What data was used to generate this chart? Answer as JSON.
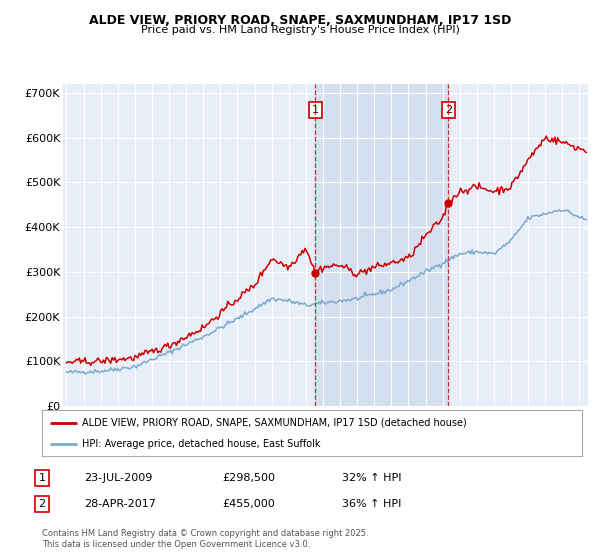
{
  "title_line1": "ALDE VIEW, PRIORY ROAD, SNAPE, SAXMUNDHAM, IP17 1SD",
  "title_line2": "Price paid vs. HM Land Registry's House Price Index (HPI)",
  "plot_bg": "#e8eef8",
  "shade_color": "#ccd9ee",
  "red_color": "#cc0000",
  "blue_color": "#7aaacc",
  "ylim": [
    0,
    720000
  ],
  "yticks": [
    0,
    100000,
    200000,
    300000,
    400000,
    500000,
    600000,
    700000
  ],
  "ytick_labels": [
    "£0",
    "£100K",
    "£200K",
    "£300K",
    "£400K",
    "£500K",
    "£600K",
    "£700K"
  ],
  "xlim_start": 1994.8,
  "xlim_end": 2025.5,
  "vline1_x": 2009.55,
  "vline2_x": 2017.33,
  "sale1_date": 2009.55,
  "sale1_price": 298500,
  "sale2_date": 2017.33,
  "sale2_price": 455000,
  "legend_red": "ALDE VIEW, PRIORY ROAD, SNAPE, SAXMUNDHAM, IP17 1SD (detached house)",
  "legend_blue": "HPI: Average price, detached house, East Suffolk",
  "footer": "Contains HM Land Registry data © Crown copyright and database right 2025.\nThis data is licensed under the Open Government Licence v3.0."
}
